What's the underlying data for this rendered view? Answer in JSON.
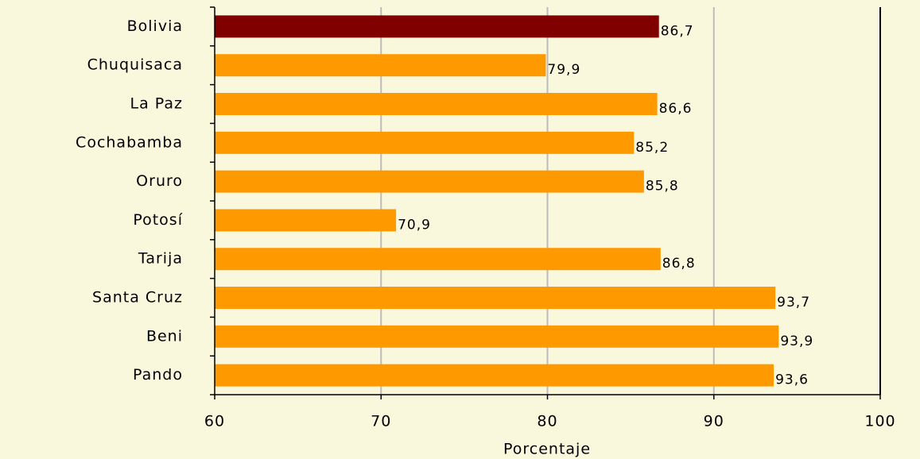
{
  "chart_data": {
    "type": "bar",
    "orientation": "horizontal",
    "categories": [
      "Bolivia",
      "Chuquisaca",
      "La Paz",
      "Cochabamba",
      "Oruro",
      "Potosí",
      "Tarija",
      "Santa Cruz",
      "Beni",
      "Pando"
    ],
    "values": [
      86.7,
      79.9,
      86.6,
      85.2,
      85.8,
      70.9,
      86.8,
      93.7,
      93.9,
      93.6
    ],
    "value_labels": [
      "86,7",
      "79,9",
      "86,6",
      "85,2",
      "85,8",
      "70,9",
      "86,8",
      "93,7",
      "93,9",
      "93,6"
    ],
    "colors": [
      "#800000",
      "#ff9900",
      "#ff9900",
      "#ff9900",
      "#ff9900",
      "#ff9900",
      "#ff9900",
      "#ff9900",
      "#ff9900",
      "#ff9900"
    ],
    "xlabel": "Porcentaje",
    "xlim": [
      60,
      100
    ],
    "xticks": [
      60,
      70,
      80,
      90,
      100
    ],
    "grid": true
  }
}
